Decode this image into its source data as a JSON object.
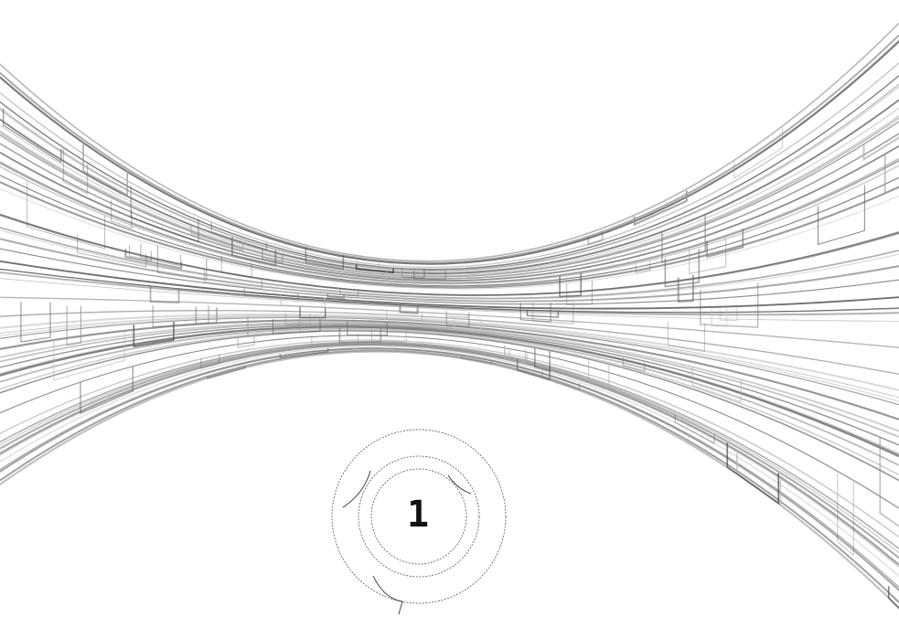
{
  "counter": {
    "label": "1"
  }
}
